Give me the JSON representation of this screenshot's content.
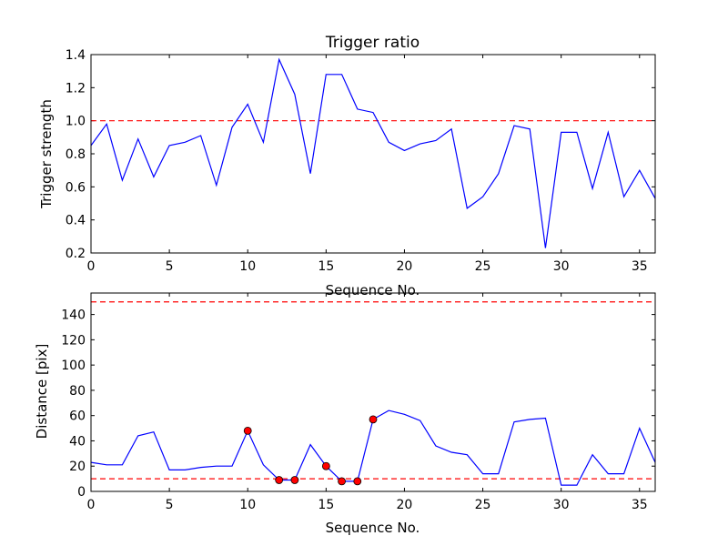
{
  "chart_data": [
    {
      "type": "line",
      "title": "Trigger ratio",
      "xlabel": "Sequence No.",
      "ylabel": "Trigger strength",
      "xlim": [
        0,
        36
      ],
      "ylim": [
        0.2,
        1.4
      ],
      "xticks": [
        "0",
        "5",
        "10",
        "15",
        "20",
        "25",
        "30",
        "35"
      ],
      "yticks": [
        "0.2",
        "0.4",
        "0.6",
        "0.8",
        "1.0",
        "1.2",
        "1.4"
      ],
      "grid": false,
      "colors": {
        "line": "#0000ff",
        "threshold": "#ff0000"
      },
      "thresholds": [
        1.0
      ],
      "series": [
        {
          "x": [
            0,
            1,
            2,
            3,
            4,
            5,
            6,
            7,
            8,
            9,
            10,
            11,
            12,
            13,
            14,
            15,
            16,
            17,
            18,
            19,
            20,
            21,
            22,
            23,
            24,
            25,
            26,
            27,
            28,
            29,
            30,
            31,
            32,
            33,
            34,
            35,
            36
          ],
          "values": [
            0.85,
            0.98,
            0.64,
            0.89,
            0.66,
            0.85,
            0.87,
            0.91,
            0.61,
            0.96,
            1.1,
            0.87,
            1.37,
            1.16,
            0.68,
            1.28,
            1.28,
            1.07,
            1.05,
            0.87,
            0.82,
            0.86,
            0.88,
            0.95,
            0.47,
            0.54,
            0.68,
            0.97,
            0.95,
            0.23,
            0.93,
            0.93,
            0.59,
            0.93,
            0.54,
            0.7,
            0.53
          ]
        }
      ]
    },
    {
      "type": "line",
      "title": "",
      "xlabel": "Sequence No.",
      "ylabel": "Distance [pix]",
      "xlim": [
        0,
        36
      ],
      "ylim": [
        0,
        157
      ],
      "xticks": [
        "0",
        "5",
        "10",
        "15",
        "20",
        "25",
        "30",
        "35"
      ],
      "yticks": [
        "0",
        "20",
        "40",
        "60",
        "80",
        "100",
        "120",
        "140"
      ],
      "grid": false,
      "colors": {
        "line": "#0000ff",
        "threshold": "#ff0000",
        "marker": "#ff0000"
      },
      "thresholds": [
        10,
        150
      ],
      "series": [
        {
          "x": [
            0,
            1,
            2,
            3,
            4,
            5,
            6,
            7,
            8,
            9,
            10,
            11,
            12,
            13,
            14,
            15,
            16,
            17,
            18,
            19,
            20,
            21,
            22,
            23,
            24,
            25,
            26,
            27,
            28,
            29,
            30,
            31,
            32,
            33,
            34,
            35,
            36
          ],
          "values": [
            23,
            21,
            21,
            44,
            47,
            17,
            17,
            19,
            20,
            20,
            48,
            21,
            9,
            9,
            37,
            20,
            8,
            8,
            57,
            64,
            61,
            56,
            36,
            31,
            29,
            14,
            14,
            55,
            57,
            58,
            5,
            5,
            29,
            14,
            14,
            50,
            23
          ]
        }
      ],
      "markers": {
        "x": [
          10,
          12,
          13,
          15,
          16,
          17,
          18
        ],
        "values": [
          48,
          9,
          9,
          20,
          8,
          8,
          57
        ]
      }
    }
  ]
}
